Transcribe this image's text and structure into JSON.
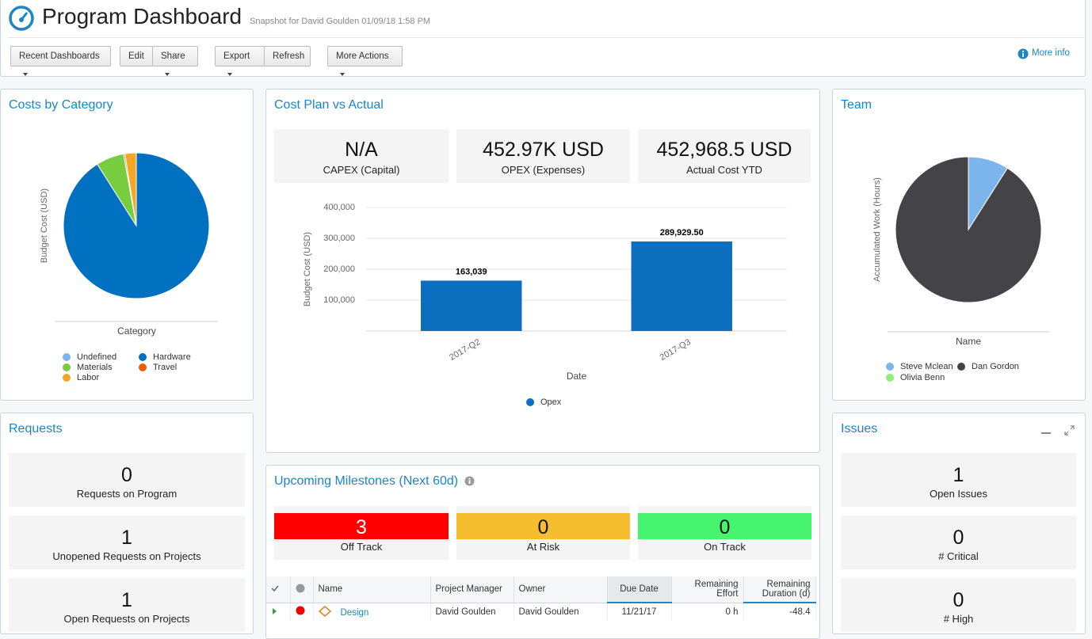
{
  "header": {
    "title": "Program Dashboard",
    "subtitle": "Snapshot for David Goulden 01/09/18 1:58 PM"
  },
  "toolbar": {
    "buttons": [
      "Recent Dashboards",
      "Edit",
      "Share",
      "Export",
      "Refresh",
      "More Actions"
    ],
    "more_info": "More info"
  },
  "costs_by_category": {
    "title": "Costs by Category",
    "chart": {
      "type": "pie",
      "y_label": "Budget Cost (USD)",
      "x_label": "Category",
      "categories": [
        "Undefined",
        "Hardware",
        "Materials",
        "Travel",
        "Labor"
      ],
      "colors": [
        "#7cb5ec",
        "#0070c0",
        "#77cc3f",
        "#f05a0a",
        "#f5a623"
      ],
      "values": [
        0,
        91,
        6.2,
        0.3,
        2.5
      ]
    }
  },
  "cost_plan": {
    "title": "Cost Plan vs Actual",
    "kpis": [
      {
        "value": "N/A",
        "label": "CAPEX (Capital)"
      },
      {
        "value": "452.97K USD",
        "label": "OPEX (Expenses)"
      },
      {
        "value": "452,968.5 USD",
        "label": "Actual Cost YTD"
      }
    ],
    "chart": {
      "type": "bar",
      "y_label": "Budget Cost (USD)",
      "x_label": "Date",
      "categories": [
        "2017-Q2",
        "2017-Q3"
      ],
      "series": [
        {
          "name": "Opex",
          "color": "#0b6ebf",
          "values": [
            163039,
            289929.5
          ],
          "value_labels": [
            "163,039",
            "289,929.50"
          ]
        }
      ],
      "ylim": [
        0,
        400000
      ],
      "yticks": [
        {
          "value": 100000,
          "label": "100,000"
        },
        {
          "value": 200000,
          "label": "200,000"
        },
        {
          "value": 300000,
          "label": "300,000"
        },
        {
          "value": 400000,
          "label": "400,000"
        }
      ],
      "grid": true
    }
  },
  "team": {
    "title": "Team",
    "chart": {
      "type": "pie",
      "y_label": "Accumulated Work (Hours)",
      "x_label": "Name",
      "categories": [
        "Steve Mclean",
        "Dan Gordon",
        "Olivia Benn"
      ],
      "colors": [
        "#7cb5ec",
        "#434348",
        "#90ed7d"
      ],
      "values": [
        9,
        91,
        0
      ]
    }
  },
  "requests": {
    "title": "Requests",
    "tiles": [
      {
        "value": 0,
        "label": "Requests on Program"
      },
      {
        "value": 1,
        "label": "Unopened Requests on Projects"
      },
      {
        "value": 1,
        "label": "Open Requests on Projects"
      }
    ]
  },
  "milestones": {
    "title": "Upcoming Milestones (Next 60d)",
    "statuses": [
      {
        "value": 3,
        "label": "Off Track",
        "color": "#ff0000"
      },
      {
        "value": 0,
        "label": "At Risk",
        "color": "#f6bd2e"
      },
      {
        "value": 0,
        "label": "On Track",
        "color": "#46f46f"
      }
    ],
    "table": {
      "columns": [
        "Name",
        "Project Manager",
        "Owner",
        "Due Date",
        "Remaining Effort",
        "Remaining Duration (d)"
      ],
      "rows": [
        [
          "Design",
          "David Goulden",
          "David Goulden",
          "11/21/17",
          "0 h",
          "-48.4"
        ]
      ]
    }
  },
  "issues": {
    "title": "Issues",
    "tiles": [
      {
        "value": 1,
        "label": "Open Issues"
      },
      {
        "value": 0,
        "label": "# Critical"
      },
      {
        "value": 0,
        "label": "# High"
      }
    ]
  }
}
